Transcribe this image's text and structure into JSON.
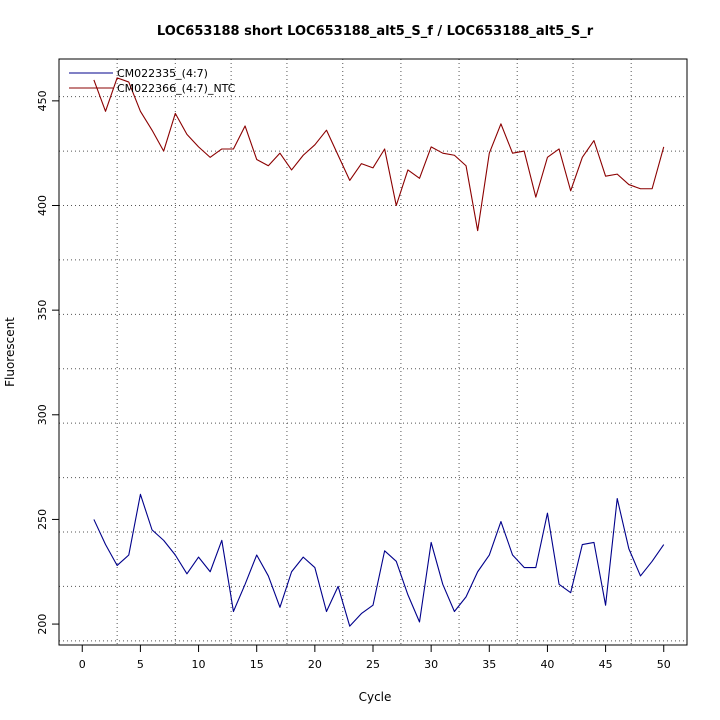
{
  "chart_data": {
    "type": "line",
    "title": "LOC653188 short LOC653188_alt5_S_f / LOC653188_alt5_S_r",
    "xlabel": "Cycle",
    "ylabel": "Fluorescent",
    "xlim": [
      -2,
      52
    ],
    "ylim": [
      190,
      470
    ],
    "x_ticks": [
      0,
      5,
      10,
      15,
      20,
      25,
      30,
      35,
      40,
      45,
      50
    ],
    "y_ticks": [
      200,
      250,
      300,
      350,
      400,
      450
    ],
    "grid_x": [
      3,
      8,
      12.8,
      17.6,
      22.4,
      27.4,
      32.4,
      37.4,
      42.2,
      47.2
    ],
    "grid_y": [
      192,
      218,
      244,
      270,
      296,
      322,
      348,
      374,
      400,
      426,
      452
    ],
    "grid": true,
    "legend_position": "top-left",
    "series": [
      {
        "name": "CM022335_(4:7)",
        "color": "#00008B",
        "x": [
          1,
          2,
          3,
          4,
          5,
          6,
          7,
          8,
          9,
          10,
          11,
          12,
          13,
          14,
          15,
          16,
          17,
          18,
          19,
          20,
          21,
          22,
          23,
          24,
          25,
          26,
          27,
          28,
          29,
          30,
          31,
          32,
          33,
          34,
          35,
          36,
          37,
          38,
          39,
          40,
          41,
          42,
          43,
          44,
          45,
          46,
          47,
          48,
          49,
          50
        ],
        "values": [
          250,
          238,
          228,
          233,
          262,
          245,
          240,
          233,
          224,
          232,
          225,
          240,
          206,
          219,
          233,
          223,
          208,
          225,
          232,
          227,
          206,
          218,
          199,
          205,
          209,
          235,
          230,
          214,
          201,
          239,
          219,
          206,
          213,
          225,
          233,
          249,
          233,
          227,
          227,
          253,
          219,
          215,
          238,
          239,
          209,
          260,
          236,
          223,
          230,
          238
        ]
      },
      {
        "name": "CM022366_(4:7)_NTC",
        "color": "#8B0000",
        "x": [
          1,
          2,
          3,
          4,
          5,
          6,
          7,
          8,
          9,
          10,
          11,
          12,
          13,
          14,
          15,
          16,
          17,
          18,
          19,
          20,
          21,
          22,
          23,
          24,
          25,
          26,
          27,
          28,
          29,
          30,
          31,
          32,
          33,
          34,
          35,
          36,
          37,
          38,
          39,
          40,
          41,
          42,
          43,
          44,
          45,
          46,
          47,
          48,
          49,
          50
        ],
        "values": [
          460,
          445,
          461,
          459,
          445,
          436,
          426,
          444,
          434,
          428,
          423,
          427,
          427,
          438,
          422,
          419,
          425,
          417,
          424,
          429,
          436,
          424,
          412,
          420,
          418,
          427,
          400,
          417,
          413,
          428,
          425,
          424,
          419,
          388,
          425,
          439,
          425,
          426,
          404,
          423,
          427,
          407,
          423,
          431,
          414,
          415,
          410,
          408,
          408,
          428
        ]
      }
    ]
  }
}
